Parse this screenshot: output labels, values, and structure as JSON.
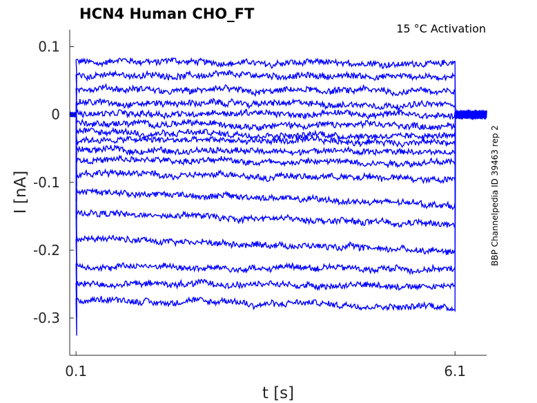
{
  "chart_data": {
    "type": "line",
    "title": "HCN4  Human  CHO_FT",
    "annotation": "15 °C  Activation",
    "side_label": "BBP Channelpedia ID 39463 rep 2",
    "xlabel": "t [s]",
    "ylabel": "I [nA]",
    "xlim": [
      0.0,
      6.6
    ],
    "ylim": [
      -0.355,
      0.125
    ],
    "x_ticks": [
      0.1,
      6.1
    ],
    "x_tick_labels": [
      "0.1",
      "6.1"
    ],
    "y_ticks": [
      0.1,
      0,
      -0.1,
      -0.2,
      -0.3
    ],
    "y_tick_labels": [
      "0.1",
      "0",
      "-0.1",
      "-0.2",
      "-0.3"
    ],
    "grid": false,
    "series_color": "#0000ff",
    "step_start": 0.1,
    "step_end": 6.1,
    "holding_level": 0.0,
    "step_levels": [
      0.078,
      0.058,
      0.036,
      0.018,
      0.003,
      -0.013,
      -0.027,
      -0.037,
      -0.052,
      -0.067,
      -0.087,
      -0.112,
      -0.145,
      -0.182,
      -0.224,
      -0.249,
      -0.274
    ],
    "step_end_levels": [
      0.075,
      0.056,
      0.034,
      0.014,
      -0.001,
      -0.017,
      -0.031,
      -0.041,
      -0.056,
      -0.071,
      -0.095,
      -0.134,
      -0.162,
      -0.201,
      -0.228,
      -0.253,
      -0.283
    ]
  }
}
